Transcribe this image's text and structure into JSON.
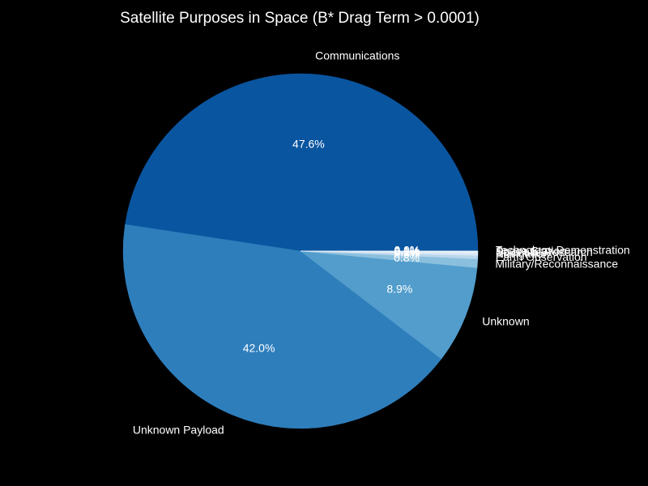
{
  "chart_data": {
    "type": "pie",
    "title": "Satellite Purposes in Space (B* Drag Term > 0.0001)",
    "slices": [
      {
        "label": "Communications",
        "value": 47.6,
        "pct_label": "47.6%",
        "color": "#0a55a0"
      },
      {
        "label": "Unknown Payload",
        "value": 42.0,
        "pct_label": "42.0%",
        "color": "#2e7ebc"
      },
      {
        "label": "Unknown",
        "value": 8.9,
        "pct_label": "8.9%",
        "color": "#529dcc"
      },
      {
        "label": "Military/Reconnaissance",
        "value": 0.8,
        "pct_label": "0.8%",
        "color": "#8abfde"
      },
      {
        "label": "Earth Observation",
        "value": 0.3,
        "pct_label": "0.3%",
        "color": "#b9d6ec"
      },
      {
        "label": "Navigation",
        "value": 0.2,
        "pct_label": "0.2%",
        "color": "#d8e7f5"
      },
      {
        "label": "Scientific Research",
        "value": 0.1,
        "pct_label": "0.1%",
        "color": "#e4eef8"
      },
      {
        "label": "Space Station",
        "value": 0.1,
        "pct_label": "0.1%",
        "color": "#eaf2fa"
      },
      {
        "label": "Technology Demonstration",
        "value": 0.0,
        "pct_label": "0.0%",
        "color": "#f4f9fd"
      }
    ]
  }
}
